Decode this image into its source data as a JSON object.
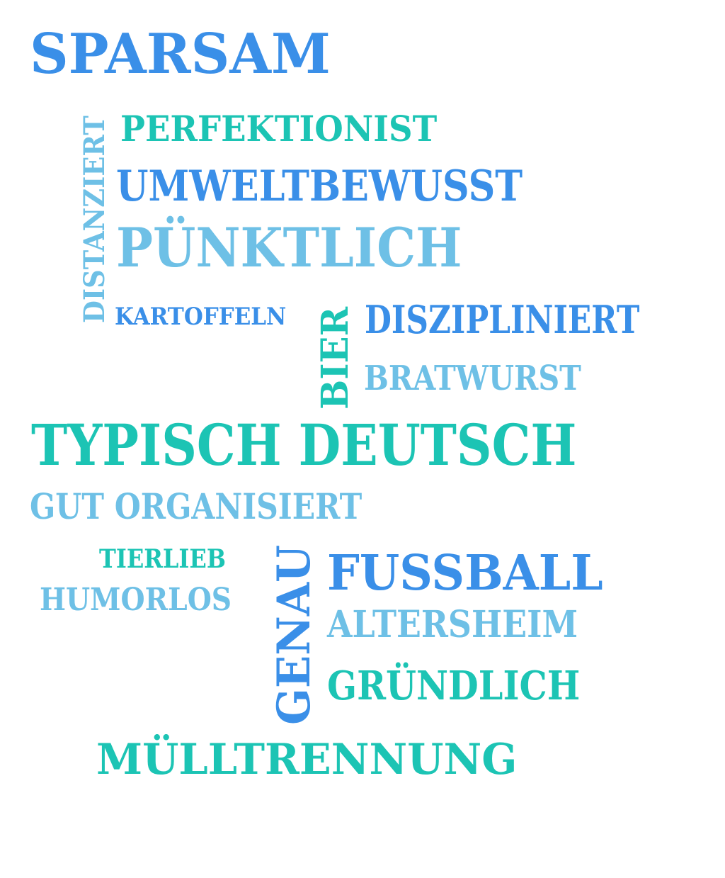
{
  "colors": {
    "blue": "#3a8fe8",
    "teal": "#1cc4b4",
    "light_blue": "#6ec0e6",
    "background": "#ffffff"
  },
  "words": {
    "sparsam": "SPARSAM",
    "distanziert": "DISTANZIERT",
    "perfektionist": "PERFEKTIONIST",
    "umweltbewusst": "UMWELTBEWUSST",
    "puenktlich": "PÜNKTLICH",
    "kartoffeln": "KARTOFFELN",
    "bier": "BIER",
    "diszipliniert": "DISZIPLINIERT",
    "bratwurst": "BRATWURST",
    "typisch_deutsch": "TYPISCH DEUTSCH",
    "gut_organisiert": "GUT ORGANISIERT",
    "tierlieb": "TIERLIEB",
    "humorlos": "HUMORLOS",
    "genau": "GENAU",
    "fussball": "FUSSBALL",
    "altersheim": "ALTERSHEIM",
    "gruendlich": "GRÜNDLICH",
    "muelltrennung": "MÜLLTRENNUNG"
  }
}
